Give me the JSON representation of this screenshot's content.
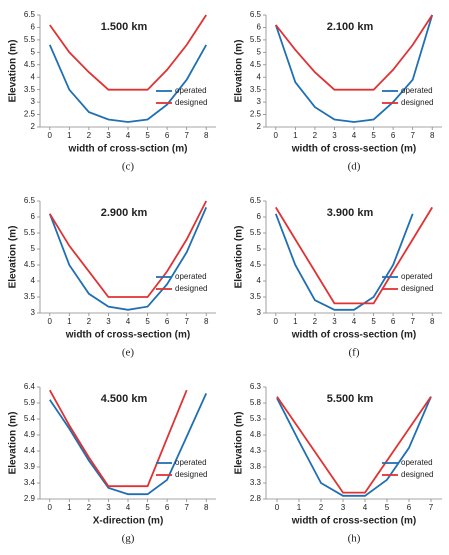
{
  "chart_data": [
    {
      "type": "line",
      "title": "1.500 km",
      "caption": "(c)",
      "xlabel": "width of cross-sction (m)",
      "ylabel": "Elevation (m)",
      "x": [
        0,
        1,
        2,
        3,
        4,
        5,
        6,
        7,
        8
      ],
      "xlim": [
        -0.5,
        8.5
      ],
      "xticks": [
        0,
        1,
        2,
        3,
        4,
        5,
        6,
        7,
        8
      ],
      "ylim": [
        2,
        6.5
      ],
      "yticks": [
        2,
        2.5,
        3,
        3.5,
        4,
        4.5,
        5,
        5.5,
        6,
        6.5
      ],
      "legend": "lower right",
      "series": [
        {
          "name": "operated",
          "color": "#1f6fb4",
          "values": [
            5.3,
            3.5,
            2.6,
            2.3,
            2.2,
            2.3,
            2.9,
            3.9,
            5.3
          ]
        },
        {
          "name": "designed",
          "color": "#e03232",
          "values": [
            6.1,
            5.0,
            4.2,
            3.5,
            3.5,
            3.5,
            4.3,
            5.3,
            6.5
          ]
        }
      ]
    },
    {
      "type": "line",
      "title": "2.100 km",
      "caption": "(d)",
      "xlabel": "width of cross-section (m)",
      "ylabel": "Elevation (m)",
      "x": [
        0,
        1,
        2,
        3,
        4,
        5,
        6,
        7,
        8
      ],
      "xlim": [
        -0.5,
        8.5
      ],
      "xticks": [
        0,
        1,
        2,
        3,
        4,
        5,
        6,
        7,
        8
      ],
      "ylim": [
        2,
        6.5
      ],
      "yticks": [
        2,
        2.5,
        3,
        3.5,
        4,
        4.5,
        5,
        5.5,
        6,
        6.5
      ],
      "legend": "lower right",
      "series": [
        {
          "name": "operated",
          "color": "#1f6fb4",
          "values": [
            6.1,
            3.8,
            2.8,
            2.3,
            2.2,
            2.3,
            3.0,
            3.9,
            6.5
          ]
        },
        {
          "name": "designed",
          "color": "#e03232",
          "values": [
            6.1,
            5.1,
            4.2,
            3.5,
            3.5,
            3.5,
            4.3,
            5.3,
            6.5
          ]
        }
      ]
    },
    {
      "type": "line",
      "title": "2.900 km",
      "caption": "(e)",
      "xlabel": "width of cross-section (m)",
      "ylabel": "Elevation (m)",
      "x": [
        0,
        1,
        2,
        3,
        4,
        5,
        6,
        7,
        8
      ],
      "xlim": [
        -0.5,
        8.5
      ],
      "xticks": [
        0,
        1,
        2,
        3,
        4,
        5,
        6,
        7,
        8
      ],
      "ylim": [
        3,
        6.5
      ],
      "yticks": [
        3,
        3.5,
        4,
        4.5,
        5,
        5.5,
        6,
        6.5
      ],
      "legend": "lower right",
      "series": [
        {
          "name": "operated",
          "color": "#1f6fb4",
          "values": [
            6.1,
            4.5,
            3.6,
            3.2,
            3.1,
            3.2,
            3.9,
            4.9,
            6.3
          ]
        },
        {
          "name": "designed",
          "color": "#e03232",
          "values": [
            6.1,
            5.1,
            4.3,
            3.5,
            3.5,
            3.5,
            4.3,
            5.3,
            6.5
          ]
        }
      ]
    },
    {
      "type": "line",
      "title": "3.900 km",
      "caption": "(f)",
      "xlabel": "width of cross-section (m)",
      "ylabel": "Elevation (m)",
      "x": [
        0,
        1,
        2,
        3,
        4,
        5,
        6,
        7,
        8
      ],
      "xlim": [
        -0.5,
        8.5
      ],
      "xticks": [
        0,
        1,
        2,
        3,
        4,
        5,
        6,
        7,
        8
      ],
      "ylim": [
        3,
        6.5
      ],
      "yticks": [
        3,
        3.5,
        4,
        4.5,
        5,
        5.5,
        6,
        6.5
      ],
      "legend": "lower right",
      "series": [
        {
          "name": "operated",
          "color": "#1f6fb4",
          "values": [
            6.1,
            4.5,
            3.4,
            3.1,
            3.1,
            3.5,
            4.5,
            6.1,
            null
          ]
        },
        {
          "name": "designed",
          "color": "#e03232",
          "values": [
            6.3,
            5.3,
            4.3,
            3.3,
            3.3,
            3.3,
            4.3,
            5.3,
            6.3
          ]
        }
      ]
    },
    {
      "type": "line",
      "title": "4.500 km",
      "caption": "(g)",
      "xlabel": "X-direction (m)",
      "ylabel": "Elevation (m)",
      "x": [
        0,
        1,
        2,
        3,
        4,
        5,
        6,
        7,
        8
      ],
      "xlim": [
        -0.5,
        8.5
      ],
      "xticks": [
        0,
        1,
        2,
        3,
        4,
        5,
        6,
        7,
        8
      ],
      "ylim": [
        2.9,
        6.4
      ],
      "yticks": [
        2.9,
        3.4,
        3.9,
        4.4,
        4.9,
        5.4,
        5.9,
        6.4
      ],
      "legend": "lower right",
      "series": [
        {
          "name": "operated",
          "color": "#1f6fb4",
          "values": [
            6.0,
            5.1,
            4.1,
            3.25,
            3.05,
            3.05,
            3.5,
            4.85,
            6.2
          ]
        },
        {
          "name": "designed",
          "color": "#e03232",
          "values": [
            6.3,
            5.2,
            4.2,
            3.3,
            3.3,
            3.3,
            4.8,
            6.3,
            null
          ]
        }
      ]
    },
    {
      "type": "line",
      "title": "5.500 km",
      "caption": "(h)",
      "xlabel": "width of cross-section (m)",
      "ylabel": "Elevation (m)",
      "x": [
        0,
        1,
        2,
        3,
        4,
        5,
        6,
        7
      ],
      "xlim": [
        -0.5,
        7.5
      ],
      "xticks": [
        0,
        1,
        2,
        3,
        4,
        5,
        6,
        7
      ],
      "ylim": [
        2.8,
        6.3
      ],
      "yticks": [
        2.8,
        3.3,
        3.8,
        4.3,
        4.8,
        5.3,
        5.8,
        6.3
      ],
      "legend": "lower right",
      "series": [
        {
          "name": "operated",
          "color": "#1f6fb4",
          "values": [
            5.95,
            4.6,
            3.3,
            2.9,
            2.9,
            3.4,
            4.4,
            6.0
          ]
        },
        {
          "name": "designed",
          "color": "#e03232",
          "values": [
            6.0,
            5.0,
            4.0,
            3.0,
            3.0,
            4.0,
            5.0,
            6.0
          ]
        }
      ]
    }
  ]
}
